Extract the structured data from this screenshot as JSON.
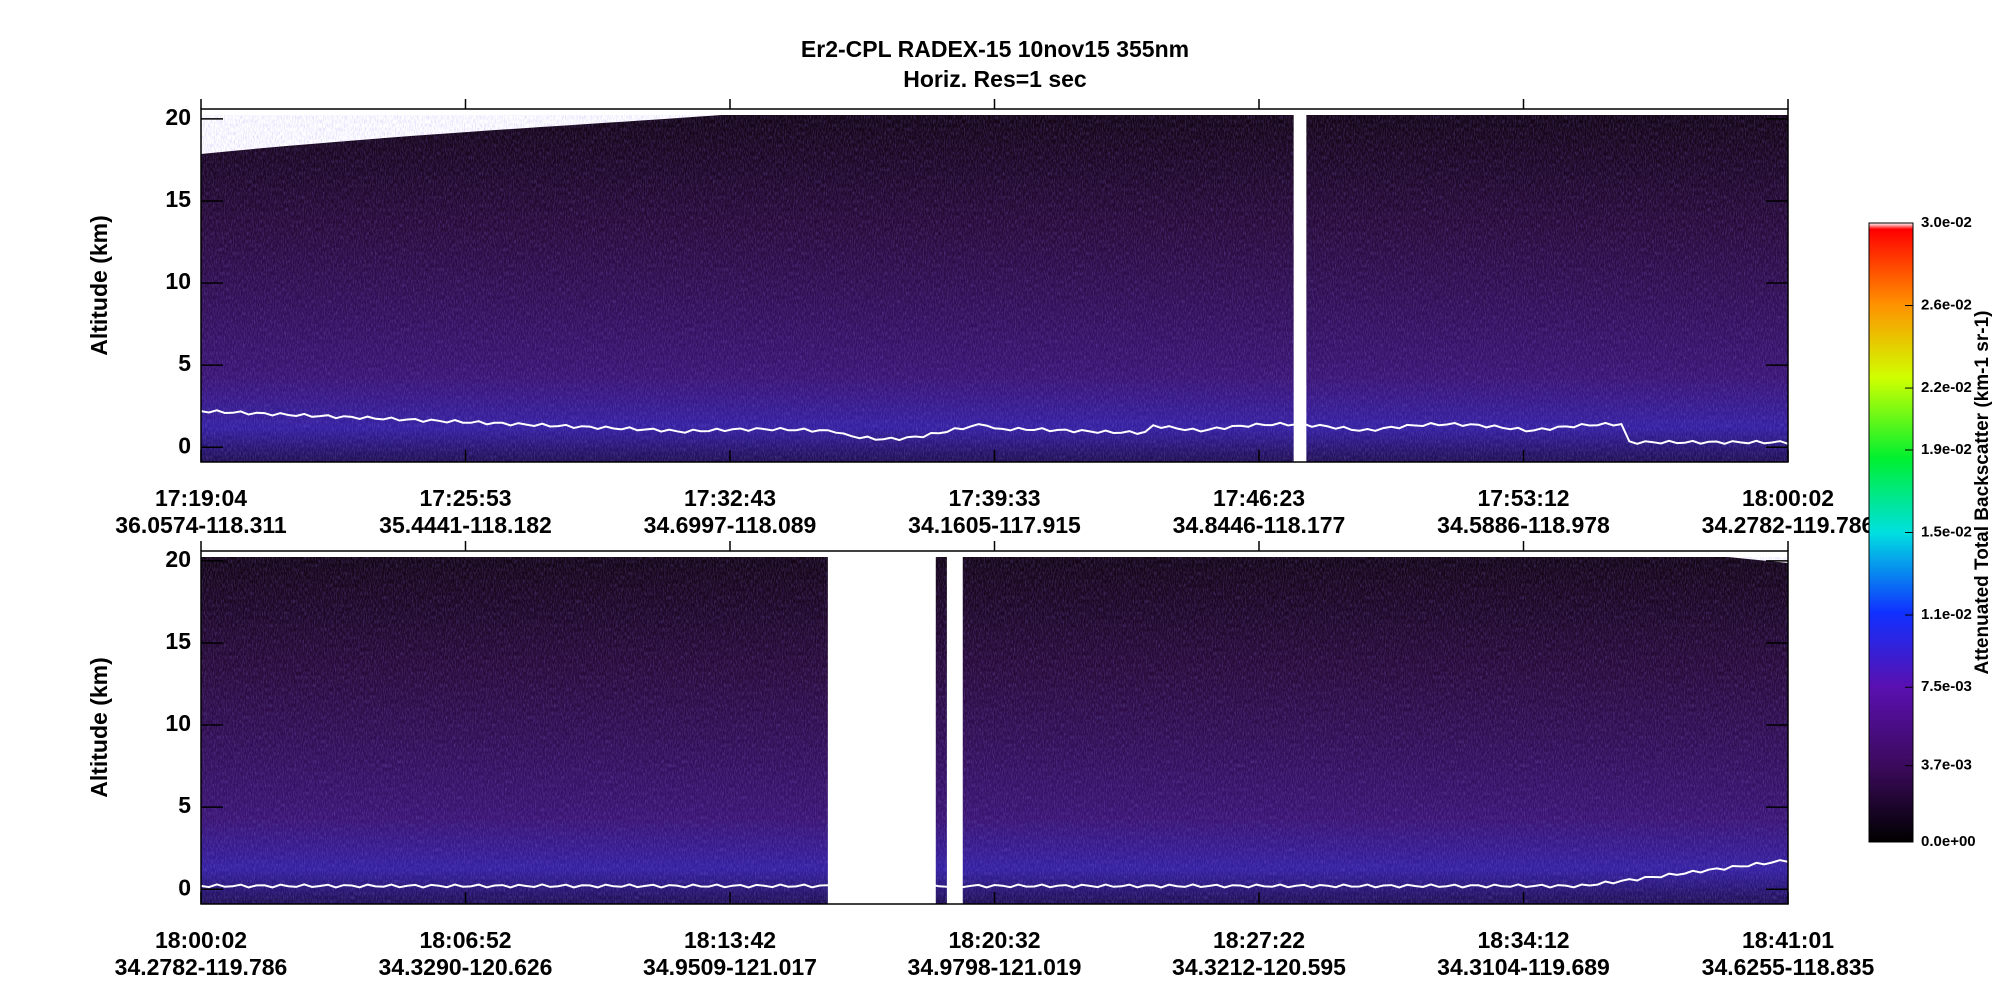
{
  "chart_data": [
    {
      "type": "curtain",
      "title": "Er2-CPL  RADEX-15  10nov15  355nm",
      "subtitle": "Horiz. Res=1 sec",
      "y_label": "Altitude (km)",
      "ylim": [
        -0.9,
        20.6
      ],
      "yticks": [
        0,
        5,
        10,
        15,
        20
      ],
      "categories": [
        "17:19:04",
        "17:25:53",
        "17:32:43",
        "17:39:33",
        "17:46:23",
        "17:53:12",
        "18:00:02"
      ],
      "locations": [
        "36.0574-118.311",
        "35.4441-118.182",
        "34.6997-118.089",
        "34.1605-117.915",
        "34.8446-118.177",
        "34.5886-118.978",
        "34.2782-119.786"
      ]
    },
    {
      "type": "curtain",
      "y_label": "Altitude (km)",
      "ylim": [
        -0.9,
        20.6
      ],
      "yticks": [
        0,
        5,
        10,
        15,
        20
      ],
      "categories": [
        "18:00:02",
        "18:06:52",
        "18:13:42",
        "18:20:32",
        "18:27:22",
        "18:34:12",
        "18:41:01"
      ],
      "locations": [
        "34.2782-119.786",
        "34.3290-120.626",
        "34.9509-121.017",
        "34.9798-121.019",
        "34.3212-120.595",
        "34.3104-119.689",
        "34.6255-118.835"
      ]
    }
  ],
  "colorbar": {
    "label": "Attenuated Total Backscatter (km-1 sr-1)",
    "lim": [
      0,
      0.03
    ],
    "ticks": [
      {
        "value": 0,
        "label": "0.0e+00"
      },
      {
        "value": 0.0037,
        "label": "3.7e-03"
      },
      {
        "value": 0.0075,
        "label": "7.5e-03"
      },
      {
        "value": 0.011,
        "label": "1.1e-02"
      },
      {
        "value": 0.015,
        "label": "1.5e-02"
      },
      {
        "value": 0.019,
        "label": "1.9e-02"
      },
      {
        "value": 0.022,
        "label": "2.2e-02"
      },
      {
        "value": 0.026,
        "label": "2.6e-02"
      },
      {
        "value": 0.03,
        "label": "3.0e-02"
      }
    ]
  }
}
